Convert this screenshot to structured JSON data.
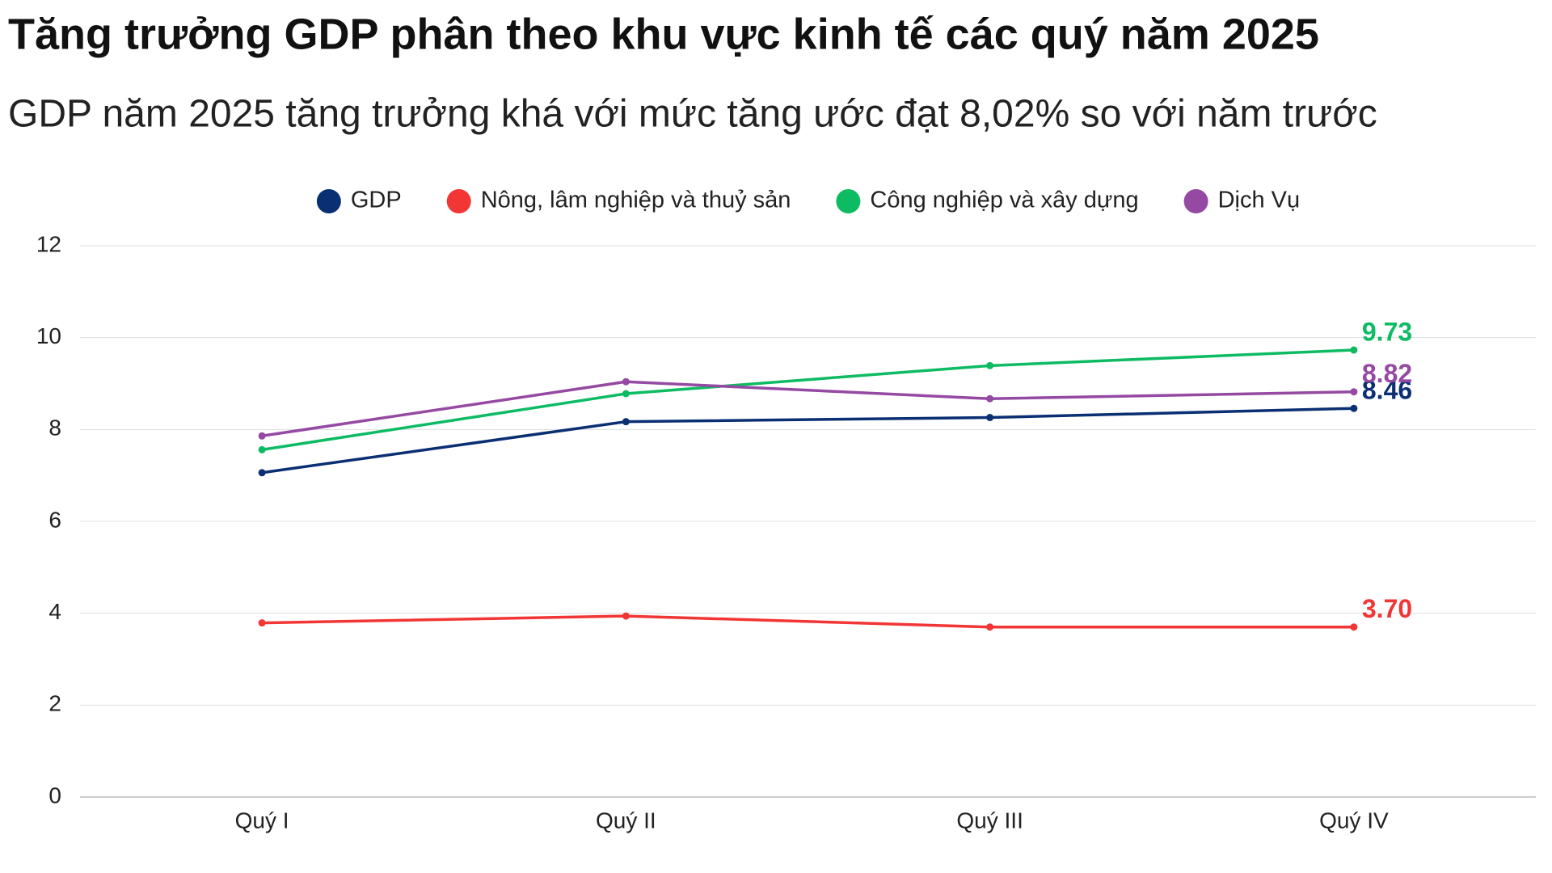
{
  "chart_data": {
    "type": "line",
    "title": "Tăng trưởng GDP phân theo khu vực kinh tế các quý năm 2025",
    "subtitle": "GDP năm 2025 tăng trưởng khá với mức tăng ước đạt 8,02% so với năm trước",
    "categories": [
      "Quý I",
      "Quý II",
      "Quý III",
      "Quý IV"
    ],
    "series": [
      {
        "name": "GDP",
        "color": "#0b2f73",
        "values": [
          7.06,
          8.17,
          8.26,
          8.46
        ],
        "value_labels": [
          null,
          null,
          null,
          "8.46"
        ]
      },
      {
        "name": "Nông, lâm nghiệp và thuỷ sản",
        "color": "#f23535",
        "values": [
          3.79,
          3.94,
          3.7,
          3.7
        ],
        "value_labels": [
          null,
          null,
          null,
          "3.70"
        ]
      },
      {
        "name": "Công nghiệp và xây dựng",
        "color": "#0dbb63",
        "values": [
          7.56,
          8.78,
          9.39,
          9.73
        ],
        "value_labels": [
          null,
          null,
          null,
          "9.73"
        ]
      },
      {
        "name": "Dịch Vụ",
        "color": "#9549a3",
        "values": [
          7.86,
          9.04,
          8.67,
          8.82
        ],
        "value_labels": [
          null,
          null,
          null,
          "8.82"
        ]
      }
    ],
    "ylim": [
      0,
      12
    ],
    "yticks": [
      0,
      2,
      4,
      6,
      8,
      10,
      12
    ],
    "grid": true,
    "legend": "top"
  }
}
